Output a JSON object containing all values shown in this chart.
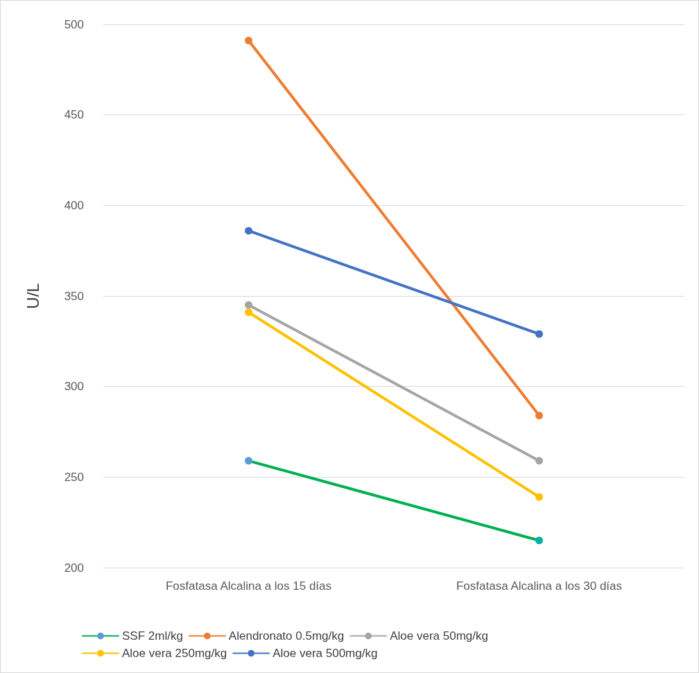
{
  "chart_data": {
    "type": "line",
    "ylabel": "U/L",
    "categories": [
      "Fosfatasa Alcalina a los 15 días",
      "Fosfatasa Alcalina a los 30 días"
    ],
    "series": [
      {
        "name": "SSF 2ml/kg",
        "color": "#00b050",
        "colors": [
          "#5b9bd5",
          "#00b0a0"
        ],
        "values": [
          259,
          215
        ]
      },
      {
        "name": "Alendronato 0.5mg/kg",
        "color": "#ed7d31",
        "values": [
          491,
          284
        ]
      },
      {
        "name": "Aloe vera 50mg/kg",
        "color": "#a5a5a5",
        "values": [
          345,
          259
        ]
      },
      {
        "name": "Aloe vera 250mg/kg",
        "color": "#ffc000",
        "values": [
          341,
          239
        ]
      },
      {
        "name": "Aloe vera 500mg/kg",
        "color": "#4472c4",
        "values": [
          386,
          329
        ]
      }
    ],
    "ylim": [
      200,
      500
    ],
    "yticks": [
      200,
      250,
      300,
      350,
      400,
      450,
      500
    ],
    "grid": "y",
    "legend": "bottom",
    "marker": "circle",
    "line_style": "solid"
  }
}
